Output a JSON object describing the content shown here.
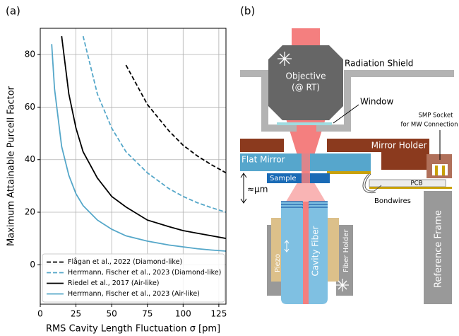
{
  "panels": [
    "(a)",
    "(b)"
  ],
  "chart_data": {
    "type": "line",
    "x_label": "RMS Cavity Length Fluctuation σ [pm]",
    "y_label": "Maximum Attainable Purcell Factor",
    "x": [
      8,
      10,
      15,
      20,
      25,
      30,
      40,
      50,
      60,
      75,
      90,
      100,
      110,
      120,
      130
    ],
    "series": [
      {
        "name": "Flågan et al., 2022 (Diamond-like)",
        "color": "#000000",
        "linestyle": "dashed",
        "values": [
          null,
          null,
          null,
          null,
          null,
          null,
          null,
          null,
          76,
          61,
          51,
          45.5,
          41.4,
          38,
          35
        ]
      },
      {
        "name": "Herrmann, Fischer et al., 2023 (Diamond-like)",
        "color": "#55a7c9",
        "linestyle": "dashed",
        "values": [
          null,
          null,
          null,
          null,
          null,
          87,
          65,
          52,
          43,
          35,
          29,
          26,
          23.6,
          21.7,
          20
        ]
      },
      {
        "name": "Riedel et al., 2017 (Air-like)",
        "color": "#000000",
        "linestyle": "solid",
        "values": [
          null,
          null,
          87,
          65,
          52,
          43,
          33,
          26,
          22,
          17,
          14.5,
          13,
          12,
          11,
          10
        ]
      },
      {
        "name": "Herrmann, Fischer et al., 2023 (Air-like)",
        "color": "#55a7c9",
        "linestyle": "solid",
        "values": [
          84,
          67,
          45,
          34,
          27,
          22.5,
          17,
          13.5,
          11,
          9,
          7.5,
          6.8,
          6.1,
          5.6,
          5.2
        ]
      }
    ],
    "xlim": [
      0,
      130
    ],
    "ylim": [
      -15,
      90
    ],
    "xticks": [
      0,
      25,
      50,
      75,
      100,
      125
    ],
    "yticks": [
      0,
      20,
      40,
      60,
      80
    ],
    "grid": true,
    "legend": "lower left"
  },
  "diagram": {
    "objective": [
      "Objective",
      "(@ RT)"
    ],
    "radiation_shield": "Radiation Shield",
    "window": "Window",
    "smp_socket": [
      "SMP Socket",
      "for MW Connection"
    ],
    "mirror_holder": "Mirror Holder",
    "flat_mirror": "Flat Mirror",
    "sample": "Sample",
    "pcb": "PCB",
    "gap": "≈µm",
    "bondwires": "Bondwires",
    "cavity_fiber": "Cavity Fiber",
    "piezo": "Piezo",
    "fiber_holder": "Fiber Holder",
    "reference_frame": "Reference Frame"
  }
}
